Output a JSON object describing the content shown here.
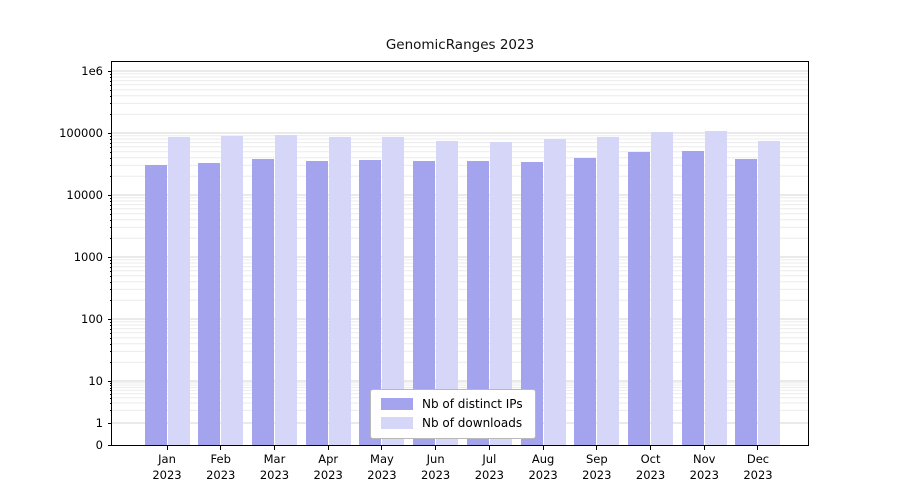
{
  "chart_data": {
    "type": "bar",
    "title": "GenomicRanges 2023",
    "categories": [
      "Jan",
      "Feb",
      "Mar",
      "Apr",
      "May",
      "Jun",
      "Jul",
      "Aug",
      "Sep",
      "Oct",
      "Nov",
      "Dec"
    ],
    "category_year": "2023",
    "series": [
      {
        "name": "Nb of distinct IPs",
        "color": "#a3a3ee",
        "values": [
          30000,
          33000,
          38000,
          36000,
          37000,
          36000,
          35000,
          34000,
          39000,
          50000,
          52000,
          38000
        ]
      },
      {
        "name": "Nb of downloads",
        "color": "#d6d6f8",
        "values": [
          85000,
          90000,
          93000,
          85000,
          85000,
          74000,
          73000,
          80000,
          85000,
          105000,
          108000,
          75000
        ]
      }
    ],
    "y_axis": {
      "scale": "symlog",
      "tick_labels": [
        "0",
        "1",
        "10",
        "100",
        "1000",
        "10000",
        "100000",
        "1e6"
      ],
      "tick_values": [
        0,
        1,
        10,
        100,
        1000,
        10000,
        100000,
        1000000
      ],
      "min": 0,
      "max_label": "1e6"
    },
    "x_axis": {
      "label": ""
    },
    "legend_position": "lower center",
    "grid": true
  }
}
